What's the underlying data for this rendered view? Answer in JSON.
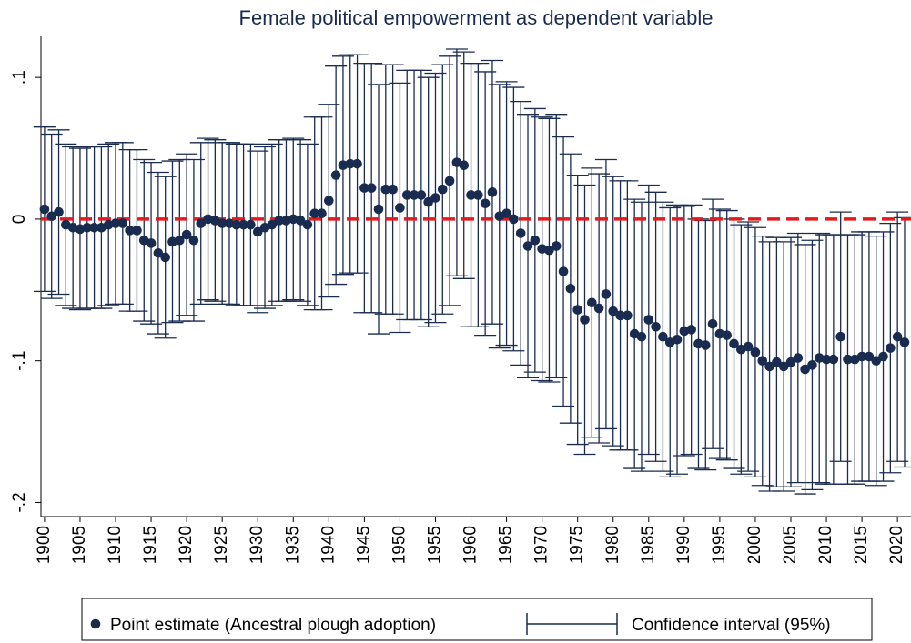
{
  "chart_data": {
    "type": "errorbar",
    "title": "Female political empowerment as dependent variable",
    "x": [
      1900,
      1901,
      1902,
      1903,
      1904,
      1905,
      1906,
      1907,
      1908,
      1909,
      1910,
      1911,
      1912,
      1913,
      1914,
      1915,
      1916,
      1917,
      1918,
      1919,
      1920,
      1921,
      1922,
      1923,
      1924,
      1925,
      1926,
      1927,
      1928,
      1929,
      1930,
      1931,
      1932,
      1933,
      1934,
      1935,
      1936,
      1937,
      1938,
      1939,
      1940,
      1941,
      1942,
      1943,
      1944,
      1945,
      1946,
      1947,
      1948,
      1949,
      1950,
      1951,
      1952,
      1953,
      1954,
      1955,
      1956,
      1957,
      1958,
      1959,
      1960,
      1961,
      1962,
      1963,
      1964,
      1965,
      1966,
      1967,
      1968,
      1969,
      1970,
      1971,
      1972,
      1973,
      1974,
      1975,
      1976,
      1977,
      1978,
      1979,
      1980,
      1981,
      1982,
      1983,
      1984,
      1985,
      1986,
      1987,
      1988,
      1989,
      1990,
      1991,
      1992,
      1993,
      1994,
      1995,
      1996,
      1997,
      1998,
      1999,
      2000,
      2001,
      2002,
      2003,
      2004,
      2005,
      2006,
      2007,
      2008,
      2009,
      2010,
      2011,
      2012,
      2013,
      2014,
      2015,
      2016,
      2017,
      2018,
      2019,
      2020,
      2021
    ],
    "series": [
      {
        "name": "Point estimate (Ancestral plough adoption)",
        "color": "#1a2b50",
        "values": [
          0.007,
          0.002,
          0.005,
          -0.004,
          -0.006,
          -0.007,
          -0.006,
          -0.006,
          -0.006,
          -0.004,
          -0.003,
          -0.003,
          -0.008,
          -0.008,
          -0.015,
          -0.017,
          -0.024,
          -0.027,
          -0.016,
          -0.015,
          -0.011,
          -0.015,
          -0.003,
          0,
          -0.001,
          -0.003,
          -0.003,
          -0.004,
          -0.004,
          -0.004,
          -0.009,
          -0.006,
          -0.004,
          -0.001,
          -0.001,
          0,
          -0.001,
          -0.004,
          0.004,
          0.004,
          0.013,
          0.031,
          0.038,
          0.039,
          0.039,
          0.022,
          0.022,
          0.007,
          0.021,
          0.021,
          0.008,
          0.017,
          0.017,
          0.017,
          0.012,
          0.015,
          0.021,
          0.027,
          0.04,
          0.038,
          0.017,
          0.017,
          0.011,
          0.019,
          0.002,
          0.004,
          0,
          -0.01,
          -0.019,
          -0.015,
          -0.021,
          -0.022,
          -0.019,
          -0.037,
          -0.049,
          -0.064,
          -0.071,
          -0.059,
          -0.063,
          -0.053,
          -0.065,
          -0.068,
          -0.068,
          -0.081,
          -0.083,
          -0.071,
          -0.076,
          -0.083,
          -0.087,
          -0.085,
          -0.079,
          -0.078,
          -0.088,
          -0.089,
          -0.074,
          -0.081,
          -0.082,
          -0.088,
          -0.092,
          -0.09,
          -0.094,
          -0.1,
          -0.104,
          -0.101,
          -0.104,
          -0.101,
          -0.098,
          -0.106,
          -0.103,
          -0.098,
          -0.099,
          -0.099,
          -0.083,
          -0.099,
          -0.099,
          -0.097,
          -0.097,
          -0.1,
          -0.097,
          -0.091,
          -0.083,
          -0.087
        ]
      }
    ],
    "ci": {
      "name": "Confidence interval (95%)",
      "color": "#1a2b50",
      "lower": [
        -0.051,
        -0.056,
        -0.053,
        -0.061,
        -0.063,
        -0.064,
        -0.063,
        -0.063,
        -0.063,
        -0.061,
        -0.06,
        -0.06,
        -0.065,
        -0.065,
        -0.072,
        -0.074,
        -0.081,
        -0.084,
        -0.073,
        -0.072,
        -0.068,
        -0.072,
        -0.06,
        -0.057,
        -0.058,
        -0.06,
        -0.06,
        -0.061,
        -0.061,
        -0.061,
        -0.066,
        -0.063,
        -0.061,
        -0.058,
        -0.058,
        -0.057,
        -0.058,
        -0.061,
        -0.064,
        -0.064,
        -0.055,
        -0.046,
        -0.039,
        -0.038,
        -0.038,
        -0.066,
        -0.066,
        -0.081,
        -0.067,
        -0.067,
        -0.08,
        -0.071,
        -0.071,
        -0.071,
        -0.076,
        -0.073,
        -0.067,
        -0.061,
        -0.04,
        -0.042,
        -0.076,
        -0.076,
        -0.082,
        -0.074,
        -0.091,
        -0.089,
        -0.093,
        -0.103,
        -0.112,
        -0.108,
        -0.114,
        -0.115,
        -0.112,
        -0.132,
        -0.144,
        -0.159,
        -0.166,
        -0.154,
        -0.158,
        -0.148,
        -0.16,
        -0.163,
        -0.163,
        -0.176,
        -0.178,
        -0.166,
        -0.171,
        -0.178,
        -0.182,
        -0.18,
        -0.167,
        -0.166,
        -0.176,
        -0.177,
        -0.162,
        -0.169,
        -0.17,
        -0.176,
        -0.18,
        -0.178,
        -0.182,
        -0.188,
        -0.192,
        -0.189,
        -0.192,
        -0.189,
        -0.186,
        -0.194,
        -0.191,
        -0.186,
        -0.187,
        -0.187,
        -0.171,
        -0.187,
        -0.187,
        -0.185,
        -0.185,
        -0.188,
        -0.185,
        -0.179,
        -0.171,
        -0.175
      ],
      "upper": [
        0.065,
        0.06,
        0.063,
        0.053,
        0.051,
        0.05,
        0.051,
        0.051,
        0.051,
        0.053,
        0.054,
        0.054,
        0.049,
        0.049,
        0.042,
        0.04,
        0.033,
        0.03,
        0.041,
        0.042,
        0.046,
        0.042,
        0.054,
        0.057,
        0.056,
        0.054,
        0.054,
        0.053,
        0.053,
        0.053,
        0.048,
        0.051,
        0.053,
        0.056,
        0.056,
        0.057,
        0.056,
        0.053,
        0.072,
        0.072,
        0.081,
        0.108,
        0.115,
        0.116,
        0.116,
        0.11,
        0.11,
        0.095,
        0.109,
        0.109,
        0.096,
        0.105,
        0.105,
        0.105,
        0.1,
        0.103,
        0.109,
        0.115,
        0.12,
        0.118,
        0.11,
        0.11,
        0.104,
        0.112,
        0.095,
        0.097,
        0.093,
        0.083,
        0.074,
        0.078,
        0.072,
        0.071,
        0.074,
        0.058,
        0.046,
        0.031,
        0.024,
        0.036,
        0.032,
        0.042,
        0.03,
        0.027,
        0.027,
        0.014,
        0.012,
        0.024,
        0.019,
        0.012,
        0.008,
        0.01,
        0.009,
        0.01,
        0,
        -0.001,
        0.014,
        0.007,
        0.006,
        0,
        -0.004,
        -0.002,
        -0.006,
        -0.012,
        -0.016,
        -0.013,
        -0.016,
        -0.013,
        -0.01,
        -0.018,
        -0.015,
        -0.01,
        -0.011,
        -0.011,
        0.005,
        -0.011,
        -0.011,
        -0.009,
        -0.009,
        -0.012,
        -0.009,
        -0.003,
        0.005,
        0.001
      ]
    },
    "hline": {
      "value": 0,
      "color": "#e41a1c"
    },
    "xlim": [
      1899.5,
      2021.9
    ],
    "ylim": [
      -0.21,
      0.129
    ],
    "xticks": [
      1900,
      1905,
      1910,
      1915,
      1920,
      1925,
      1930,
      1935,
      1940,
      1945,
      1950,
      1955,
      1960,
      1965,
      1970,
      1975,
      1980,
      1985,
      1990,
      1995,
      2000,
      2005,
      2010,
      2015,
      2020
    ],
    "yticks": [
      {
        "value": 0.1,
        "label": ".1"
      },
      0,
      {
        "value": -0.1,
        "label": "-.1"
      },
      {
        "value": -0.2,
        "label": "-.2"
      }
    ]
  }
}
